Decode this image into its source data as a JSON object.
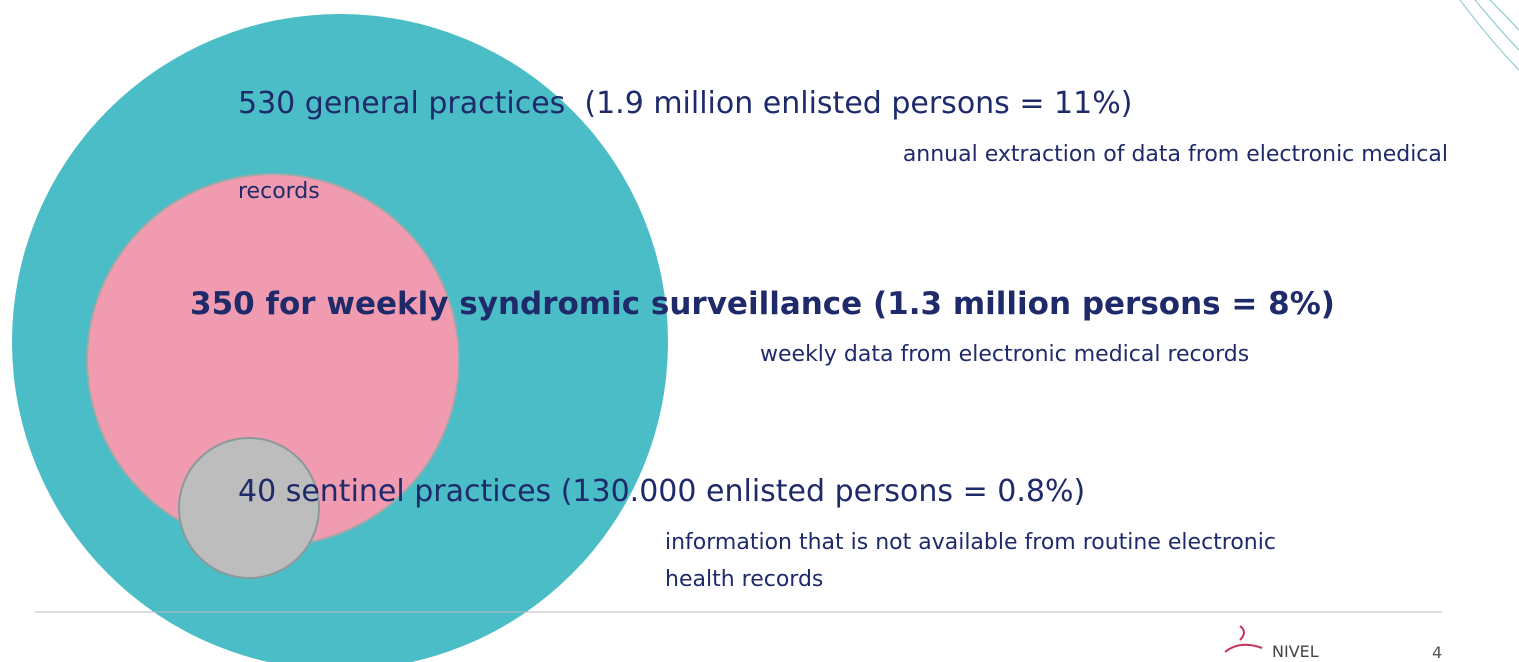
{
  "levels": [
    {
      "heading": "530 general practices  (1.9 million enlisted persons = 11%)",
      "description": [
        "annual extraction of data from electronic medical",
        "records"
      ]
    },
    {
      "heading": "350 for weekly syndromic surveillance (1.3 million persons = 8%)",
      "description": [
        "weekly data from electronic medical records"
      ]
    },
    {
      "heading": "40 sentinel practices (130.000 enlisted persons = 0.8%)",
      "description": [
        "information that is not available from routine electronic",
        "health records"
      ]
    }
  ],
  "footer": {
    "logo": "NIVEL",
    "page_number": "4"
  }
}
